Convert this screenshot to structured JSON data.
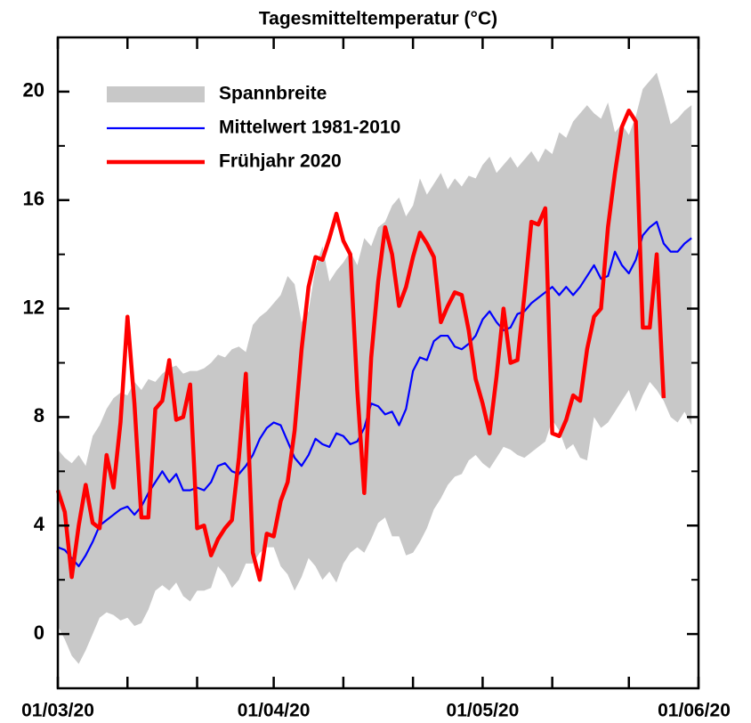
{
  "chart_data": {
    "type": "line",
    "title": "Tagesmitteltemperatur (°C)",
    "xlim": [
      0,
      92
    ],
    "xticks": [
      {
        "value": 0,
        "label": "01/03/20"
      },
      {
        "value": 31,
        "label": "01/04/20"
      },
      {
        "value": 61,
        "label": "01/05/20"
      },
      {
        "value": 92,
        "label": "01/06/20"
      }
    ],
    "xminorticks": [
      10,
      20,
      41,
      51,
      71,
      82
    ],
    "ylim": [
      -2,
      22
    ],
    "yticks": [
      0,
      4,
      8,
      12,
      16,
      20
    ],
    "yminorticks": [
      2,
      6,
      10,
      14,
      18
    ],
    "legend": "top-left",
    "x": [
      0,
      1,
      2,
      3,
      4,
      5,
      6,
      7,
      8,
      9,
      10,
      11,
      12,
      13,
      14,
      15,
      16,
      17,
      18,
      19,
      20,
      21,
      22,
      23,
      24,
      25,
      26,
      27,
      28,
      29,
      30,
      31,
      32,
      33,
      34,
      35,
      36,
      37,
      38,
      39,
      40,
      41,
      42,
      43,
      44,
      45,
      46,
      47,
      48,
      49,
      50,
      51,
      52,
      53,
      54,
      55,
      56,
      57,
      58,
      59,
      60,
      61,
      62,
      63,
      64,
      65,
      66,
      67,
      68,
      69,
      70,
      71,
      72,
      73,
      74,
      75,
      76,
      77,
      78,
      79,
      80,
      81,
      82,
      83,
      84,
      85,
      86,
      87,
      88,
      89,
      90,
      91
    ],
    "band": {
      "name": "Spannbreite",
      "color": "#c8c8c8",
      "upper": [
        6.8,
        6.5,
        6.3,
        6.6,
        6.2,
        7.3,
        7.7,
        8.3,
        8.7,
        8.9,
        8.8,
        9.3,
        9.0,
        9.4,
        9.3,
        9.6,
        9.8,
        9.9,
        9.6,
        9.7,
        9.7,
        9.8,
        10.0,
        10.3,
        10.2,
        10.5,
        10.6,
        10.4,
        11.4,
        11.7,
        11.9,
        12.2,
        12.5,
        13.2,
        12.9,
        11.5,
        11.9,
        13.5,
        14.3,
        13.0,
        13.4,
        13.7,
        14.1,
        13.6,
        14.6,
        14.3,
        15.0,
        15.2,
        15.8,
        16.1,
        15.4,
        15.8,
        16.8,
        16.2,
        16.6,
        17.0,
        16.4,
        16.8,
        16.5,
        16.9,
        16.8,
        17.3,
        17.6,
        17.0,
        17.3,
        17.6,
        17.2,
        17.5,
        17.8,
        17.4,
        17.9,
        17.7,
        18.5,
        18.3,
        18.9,
        19.2,
        19.5,
        19.2,
        19.0,
        19.6,
        18.5,
        18.8,
        18.4,
        19.1,
        20.1,
        20.4,
        20.7,
        19.8,
        18.8,
        19.0,
        19.3,
        19.5
      ],
      "lower": [
        0.3,
        -0.2,
        -0.8,
        -1.1,
        -0.6,
        0.0,
        0.6,
        0.8,
        0.7,
        0.5,
        0.6,
        0.3,
        0.4,
        0.9,
        1.6,
        1.8,
        1.6,
        1.9,
        1.4,
        1.2,
        1.6,
        1.6,
        1.7,
        2.5,
        2.2,
        1.7,
        2.0,
        2.6,
        2.6,
        3.0,
        3.2,
        3.2,
        2.5,
        2.2,
        1.6,
        2.1,
        2.8,
        2.5,
        2.0,
        2.3,
        1.9,
        2.6,
        3.0,
        3.2,
        3.0,
        3.5,
        4.1,
        4.3,
        3.6,
        3.6,
        2.9,
        3.0,
        3.4,
        3.9,
        4.6,
        5.0,
        5.5,
        5.8,
        5.9,
        6.4,
        6.6,
        6.3,
        6.1,
        6.5,
        6.9,
        6.8,
        6.6,
        6.5,
        6.7,
        6.9,
        7.1,
        7.9,
        7.5,
        6.8,
        7.0,
        6.5,
        6.4,
        8.0,
        7.6,
        7.8,
        8.2,
        8.6,
        9.0,
        8.2,
        8.8,
        9.3,
        9.0,
        8.6,
        8.0,
        7.8,
        8.2,
        7.7
      ]
    },
    "series": [
      {
        "name": "Mittelwert 1981-2010",
        "color": "#0000ff",
        "values": [
          3.2,
          3.1,
          2.8,
          2.5,
          2.9,
          3.4,
          4.0,
          4.2,
          4.4,
          4.6,
          4.7,
          4.4,
          4.7,
          5.2,
          5.6,
          6.0,
          5.6,
          5.9,
          5.3,
          5.3,
          5.4,
          5.3,
          5.6,
          6.2,
          6.3,
          6.0,
          5.9,
          6.2,
          6.6,
          7.2,
          7.6,
          7.8,
          7.7,
          7.1,
          6.5,
          6.2,
          6.6,
          7.2,
          7.0,
          6.9,
          7.4,
          7.3,
          7.0,
          7.1,
          7.6,
          8.5,
          8.4,
          8.1,
          8.2,
          7.7,
          8.3,
          9.7,
          10.2,
          10.1,
          10.8,
          11.0,
          11.0,
          10.6,
          10.5,
          10.7,
          11.0,
          11.6,
          11.9,
          11.5,
          11.2,
          11.3,
          11.8,
          11.9,
          12.2,
          12.4,
          12.6,
          12.8,
          12.5,
          12.8,
          12.5,
          12.8,
          13.2,
          13.6,
          13.1,
          13.2,
          14.1,
          13.6,
          13.3,
          13.8,
          14.7,
          15.0,
          15.2,
          14.4,
          14.1,
          14.1,
          14.4,
          14.6
        ]
      },
      {
        "name": "Frühjahr 2020",
        "color": "#ff0000",
        "values": [
          5.3,
          4.5,
          2.1,
          4.0,
          5.5,
          4.1,
          3.9,
          6.6,
          5.4,
          7.8,
          11.7,
          8.5,
          4.3,
          4.3,
          8.3,
          8.6,
          10.1,
          7.9,
          8.0,
          9.2,
          3.9,
          4.0,
          2.9,
          3.5,
          3.9,
          4.2,
          6.5,
          9.6,
          3.0,
          2.0,
          3.7,
          3.6,
          4.9,
          5.6,
          7.5,
          10.5,
          12.8,
          13.9,
          13.8,
          14.6,
          15.5,
          14.5,
          14.0,
          9.0,
          5.2,
          10.2,
          13.0,
          15.0,
          14.0,
          12.1,
          12.8,
          13.9,
          14.8,
          14.4,
          13.9,
          11.5,
          12.1,
          12.6,
          12.5,
          11.2,
          9.4,
          8.5,
          7.4,
          9.5,
          12.0,
          10.0,
          10.1,
          12.5,
          15.2,
          15.1,
          15.7,
          7.4,
          7.3,
          7.9,
          8.8,
          8.6,
          10.5,
          11.7,
          12.0,
          15.0,
          17.0,
          18.7,
          19.3,
          18.9,
          11.3,
          11.3,
          14.0,
          8.7,
          null,
          null,
          null,
          null
        ]
      }
    ]
  }
}
